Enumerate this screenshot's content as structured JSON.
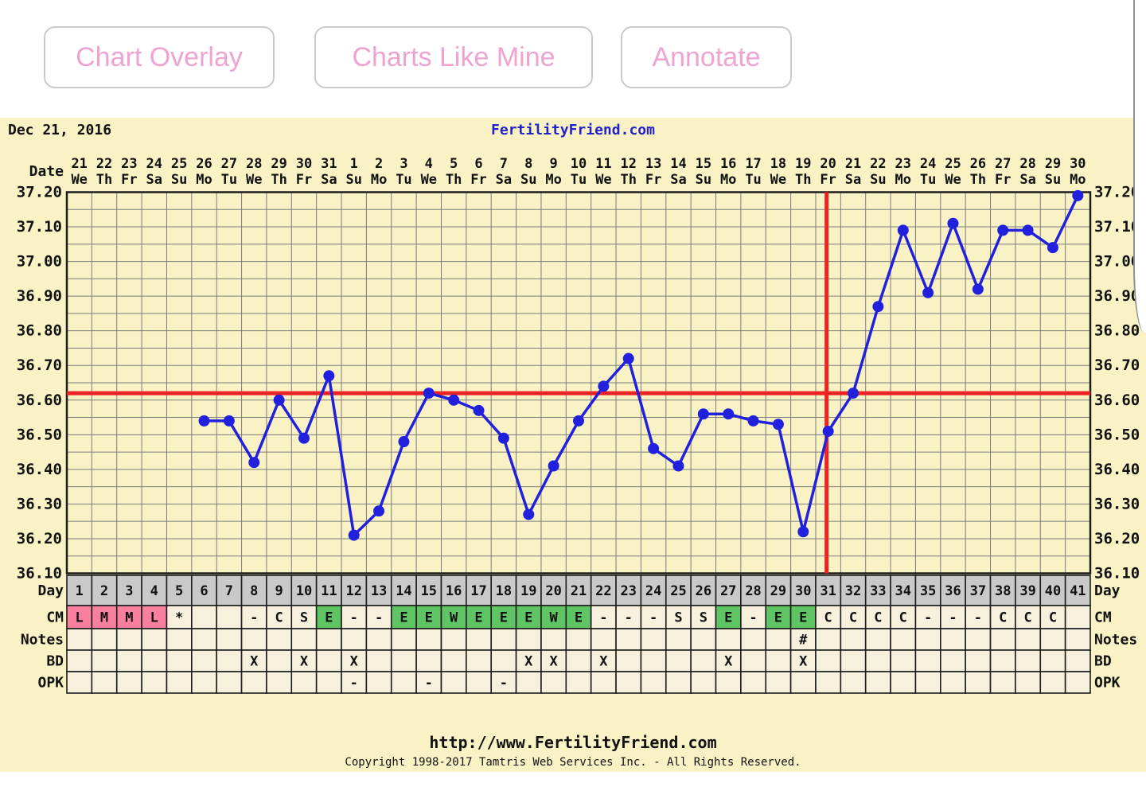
{
  "toolbar": {
    "buttons": [
      {
        "label": "Chart Overlay"
      },
      {
        "label": "Charts Like Mine"
      },
      {
        "label": "Annotate"
      }
    ]
  },
  "header": {
    "date_label": "Dec 21, 2016",
    "site_title": "FertilityFriend.com"
  },
  "footer": {
    "url": "http://www.FertilityFriend.com",
    "copyright": "Copyright 1998-2017 Tamtris Web Services Inc. - All Rights Reserved."
  },
  "chart_data": {
    "type": "line",
    "title": "FertilityFriend.com",
    "x_axis_label": "Date",
    "day_row_label": "Day",
    "ylim": [
      36.1,
      37.2
    ],
    "y_ticks": [
      "37.20",
      "37.10",
      "37.00",
      "36.90",
      "36.80",
      "36.70",
      "36.60",
      "36.50",
      "36.40",
      "36.30",
      "36.20",
      "36.10"
    ],
    "grid": true,
    "dates": [
      "21",
      "22",
      "23",
      "24",
      "25",
      "26",
      "27",
      "28",
      "29",
      "30",
      "31",
      "1",
      "2",
      "3",
      "4",
      "5",
      "6",
      "7",
      "8",
      "9",
      "10",
      "11",
      "12",
      "13",
      "14",
      "15",
      "16",
      "17",
      "18",
      "19",
      "20",
      "21",
      "22",
      "23",
      "24",
      "25",
      "26",
      "27",
      "28",
      "29",
      "30"
    ],
    "weekdays": [
      "We",
      "Th",
      "Fr",
      "Sa",
      "Su",
      "Mo",
      "Tu",
      "We",
      "Th",
      "Fr",
      "Sa",
      "Su",
      "Mo",
      "Tu",
      "We",
      "Th",
      "Fr",
      "Sa",
      "Su",
      "Mo",
      "Tu",
      "We",
      "Th",
      "Fr",
      "Sa",
      "Su",
      "Mo",
      "Tu",
      "We",
      "Th",
      "Fr",
      "Sa",
      "Su",
      "Mo",
      "Tu",
      "We",
      "Th",
      "Fr",
      "Sa",
      "Su",
      "Mo"
    ],
    "cycle_days": [
      "1",
      "2",
      "3",
      "4",
      "5",
      "6",
      "7",
      "8",
      "9",
      "10",
      "11",
      "12",
      "13",
      "14",
      "15",
      "16",
      "17",
      "18",
      "19",
      "20",
      "21",
      "22",
      "23",
      "24",
      "25",
      "26",
      "27",
      "28",
      "29",
      "30",
      "31",
      "32",
      "33",
      "34",
      "35",
      "36",
      "37",
      "38",
      "39",
      "40",
      "41"
    ],
    "temps": [
      null,
      null,
      null,
      null,
      null,
      36.54,
      36.54,
      36.42,
      36.6,
      36.49,
      36.67,
      36.21,
      36.28,
      36.48,
      36.62,
      36.6,
      36.57,
      36.49,
      36.27,
      36.41,
      36.54,
      36.64,
      36.72,
      36.46,
      36.41,
      36.56,
      36.56,
      36.54,
      36.53,
      36.22,
      36.51,
      36.62,
      36.87,
      37.09,
      36.91,
      37.11,
      36.92,
      37.09,
      37.09,
      37.04,
      37.19
    ],
    "coverline": 36.62,
    "ovulation_line_day": 31,
    "rows": {
      "cm": {
        "label": "CM",
        "values": [
          "L",
          "M",
          "M",
          "L",
          "*",
          "",
          "",
          "-",
          "C",
          "S",
          "E",
          "-",
          "-",
          "E",
          "E",
          "W",
          "E",
          "E",
          "E",
          "W",
          "E",
          "-",
          "-",
          "-",
          "S",
          "S",
          "E",
          "-",
          "E",
          "E",
          "C",
          "C",
          "C",
          "C",
          "-",
          "-",
          "-",
          "C",
          "C",
          "C",
          ""
        ],
        "highlight": [
          "menses",
          "menses",
          "menses",
          "menses",
          "",
          "",
          "",
          "",
          "",
          "",
          "fertile",
          "",
          "",
          "fertile",
          "fertile",
          "fertile",
          "fertile",
          "fertile",
          "fertile",
          "fertile",
          "fertile",
          "",
          "",
          "",
          "",
          "",
          "fertile",
          "",
          "fertile",
          "fertile",
          "",
          "",
          "",
          "",
          "",
          "",
          "",
          "",
          "",
          "",
          ""
        ]
      },
      "notes": {
        "label": "Notes",
        "values": [
          "",
          "",
          "",
          "",
          "",
          "",
          "",
          "",
          "",
          "",
          "",
          "",
          "",
          "",
          "",
          "",
          "",
          "",
          "",
          "",
          "",
          "",
          "",
          "",
          "",
          "",
          "",
          "",
          "",
          "#",
          "",
          "",
          "",
          "",
          "",
          "",
          "",
          "",
          "",
          "",
          ""
        ]
      },
      "bd": {
        "label": "BD",
        "values": [
          "",
          "",
          "",
          "",
          "",
          "",
          "",
          "X",
          "",
          "X",
          "",
          "X",
          "",
          "",
          "",
          "",
          "",
          "",
          "X",
          "X",
          "",
          "X",
          "",
          "",
          "",
          "",
          "X",
          "",
          "",
          "X",
          "",
          "",
          "",
          "",
          "",
          "",
          "",
          "",
          "",
          "",
          ""
        ]
      },
      "opk": {
        "label": "OPK",
        "values": [
          "",
          "",
          "",
          "",
          "",
          "",
          "",
          "",
          "",
          "",
          "",
          "-",
          "",
          "",
          "-",
          "",
          "",
          "-",
          "",
          "",
          "",
          "",
          "",
          "",
          "",
          "",
          "",
          "",
          "",
          "",
          "",
          "",
          "",
          "",
          "",
          "",
          "",
          "",
          "",
          "",
          ""
        ]
      }
    }
  },
  "colors": {
    "panel_bg": "#f9f2c5",
    "cell_bg": "#f7f0dc",
    "day_header_bg": "#c9c9c9",
    "grid_line": "#7c7c7c",
    "plot_border": "#1d1d1d",
    "temp_line": "#2020dd",
    "red_line": "#ee2222",
    "menses_pink": "#f97f9e",
    "fertile_green": "#5fc463",
    "title_blue": "#2222cc",
    "button_pink": "#efa3d1",
    "button_border": "#c9c9cf",
    "text": "#111111"
  }
}
